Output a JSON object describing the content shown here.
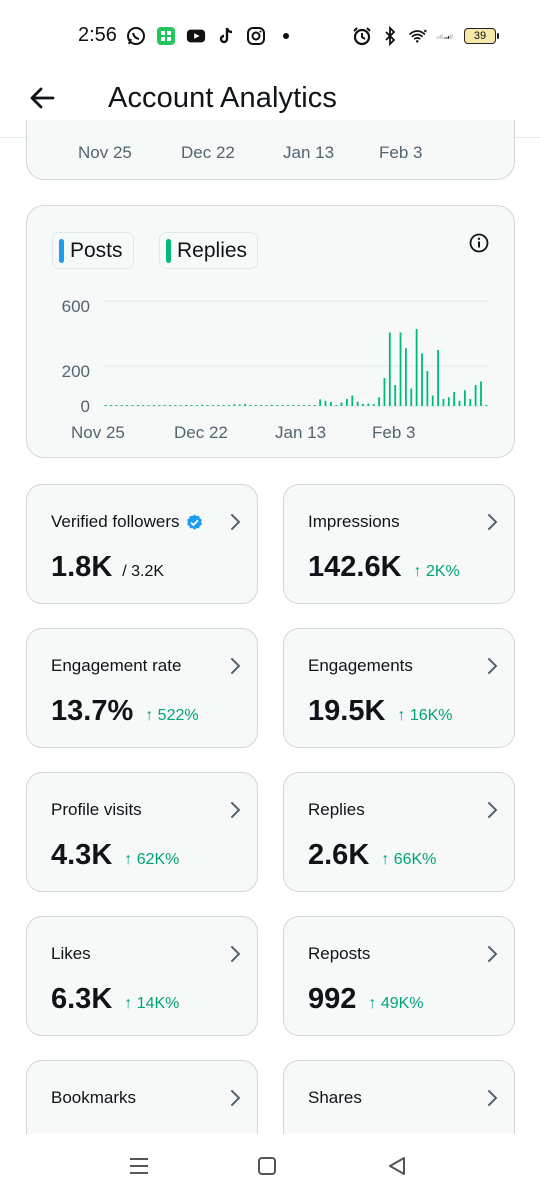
{
  "status_bar": {
    "time": "2:56",
    "battery": "39",
    "icons_left": [
      "whatsapp-icon",
      "app-icon",
      "youtube-icon",
      "tiktok-icon",
      "instagram-icon",
      "dot-icon"
    ],
    "icons_right": [
      "alarm-icon",
      "bluetooth-icon",
      "wifi-icon",
      "signal-icon",
      "battery-icon"
    ]
  },
  "header": {
    "title": "Account Analytics"
  },
  "top_card": {
    "x_labels": [
      "Nov 25",
      "Dec 22",
      "Jan 13",
      "Feb 3"
    ]
  },
  "chart_card": {
    "legend": [
      {
        "label": "Posts",
        "color": "#1d9bf0"
      },
      {
        "label": "Replies",
        "color": "#00ba7c"
      }
    ],
    "chart_data": {
      "type": "bar",
      "x_tick_labels": [
        "Nov 25",
        "Dec 22",
        "Jan 13",
        "Feb 3"
      ],
      "y_tick_labels": [
        "600",
        "200",
        "0"
      ],
      "ylim": [
        0,
        600
      ],
      "series": [
        {
          "name": "Replies",
          "color": "#00ba7c",
          "values": [
            2,
            1,
            3,
            2,
            1,
            4,
            2,
            3,
            1,
            2,
            3,
            2,
            4,
            5,
            3,
            2,
            6,
            4,
            8,
            5,
            3,
            6,
            4,
            2,
            10,
            8,
            12,
            6,
            4,
            3,
            5,
            8,
            6,
            4,
            2,
            3,
            6,
            4,
            3,
            5,
            38,
            30,
            24,
            6,
            20,
            40,
            60,
            25,
            12,
            14,
            10,
            50,
            160,
            420,
            120,
            420,
            330,
            100,
            440,
            300,
            200,
            60,
            320,
            40,
            50,
            80,
            30,
            90,
            40,
            120,
            140,
            5
          ]
        }
      ]
    }
  },
  "metrics": [
    {
      "label": "Verified followers",
      "verified": true,
      "value": "1.8K",
      "sub": "/ 3.2K",
      "change": ""
    },
    {
      "label": "Impressions",
      "verified": false,
      "value": "142.6K",
      "sub": "",
      "change": "↑ 2K%"
    },
    {
      "label": "Engagement rate",
      "verified": false,
      "value": "13.7%",
      "sub": "",
      "change": "↑ 522%"
    },
    {
      "label": "Engagements",
      "verified": false,
      "value": "19.5K",
      "sub": "",
      "change": "↑ 16K%"
    },
    {
      "label": "Profile visits",
      "verified": false,
      "value": "4.3K",
      "sub": "",
      "change": "↑ 62K%"
    },
    {
      "label": "Replies",
      "verified": false,
      "value": "2.6K",
      "sub": "",
      "change": "↑ 66K%"
    },
    {
      "label": "Likes",
      "verified": false,
      "value": "6.3K",
      "sub": "",
      "change": "↑ 14K%"
    },
    {
      "label": "Reposts",
      "verified": false,
      "value": "992",
      "sub": "",
      "change": "↑ 49K%"
    },
    {
      "label": "Bookmarks",
      "verified": false,
      "value": "",
      "sub": "",
      "change": ""
    },
    {
      "label": "Shares",
      "verified": false,
      "value": "",
      "sub": "",
      "change": ""
    }
  ],
  "colors": {
    "positive": "#00a37a",
    "accent": "#1d9bf0",
    "border": "#cfd9de"
  },
  "nav_bar": {
    "buttons": [
      "menu-icon",
      "home-icon",
      "back-icon"
    ]
  }
}
